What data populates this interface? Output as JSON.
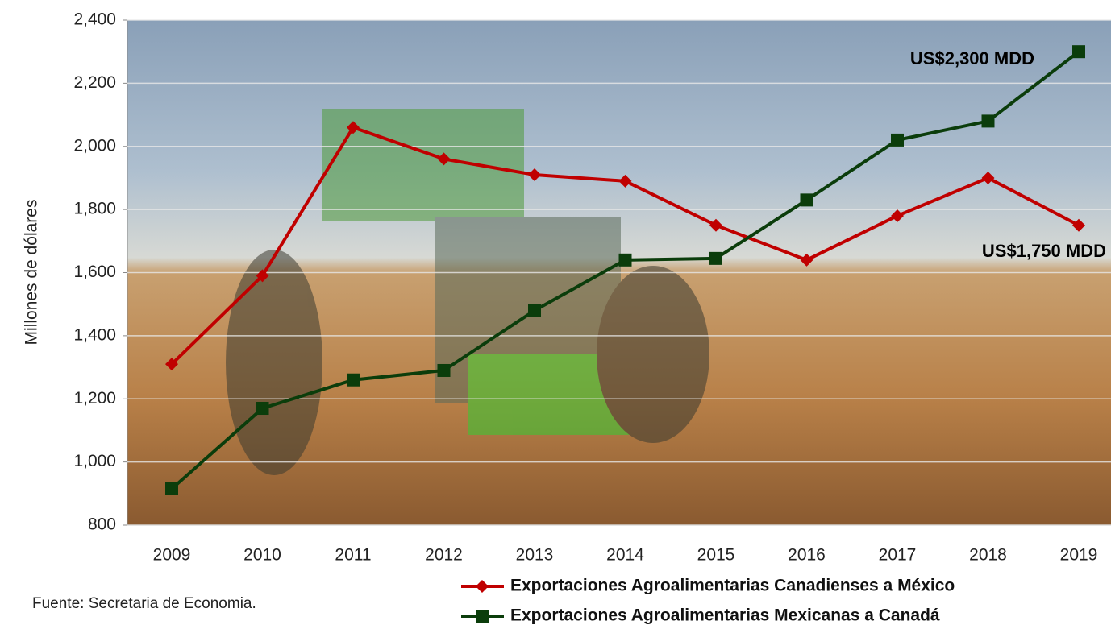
{
  "chart_data": {
    "type": "line",
    "y_label": "Millones de dólares",
    "source": "Fuente: Secretaria de Economia.",
    "categories": [
      "2009",
      "2010",
      "2011",
      "2012",
      "2013",
      "2014",
      "2015",
      "2016",
      "2017",
      "2018",
      "2019"
    ],
    "series": [
      {
        "name": "Exportaciones Agroalimentarias Canadienses a México",
        "color": "#c00000",
        "marker": "diamond",
        "values": [
          1310,
          1590,
          2060,
          1960,
          1910,
          1890,
          1750,
          1640,
          1780,
          1900,
          1750
        ]
      },
      {
        "name": "Exportaciones Agroalimentarias Mexicanas a Canadá",
        "color": "#0b3d0b",
        "marker": "square",
        "values": [
          915,
          1170,
          1260,
          1290,
          1480,
          1640,
          1645,
          1830,
          2020,
          2080,
          2300
        ]
      }
    ],
    "annotations": [
      "US$2,300 MDD",
      "US$1,750 MDD"
    ],
    "ylim": [
      800,
      2400
    ],
    "yticks": [
      {
        "value": 800,
        "label": "800"
      },
      {
        "value": 1000,
        "label": "1,000"
      },
      {
        "value": 1200,
        "label": "1,200"
      },
      {
        "value": 1400,
        "label": "1,400"
      },
      {
        "value": 1600,
        "label": "1,600"
      },
      {
        "value": 1800,
        "label": "1,800"
      },
      {
        "value": 2000,
        "label": "2,000"
      },
      {
        "value": 2200,
        "label": "2,200"
      },
      {
        "value": 2400,
        "label": "2,400"
      }
    ],
    "grid": true
  }
}
